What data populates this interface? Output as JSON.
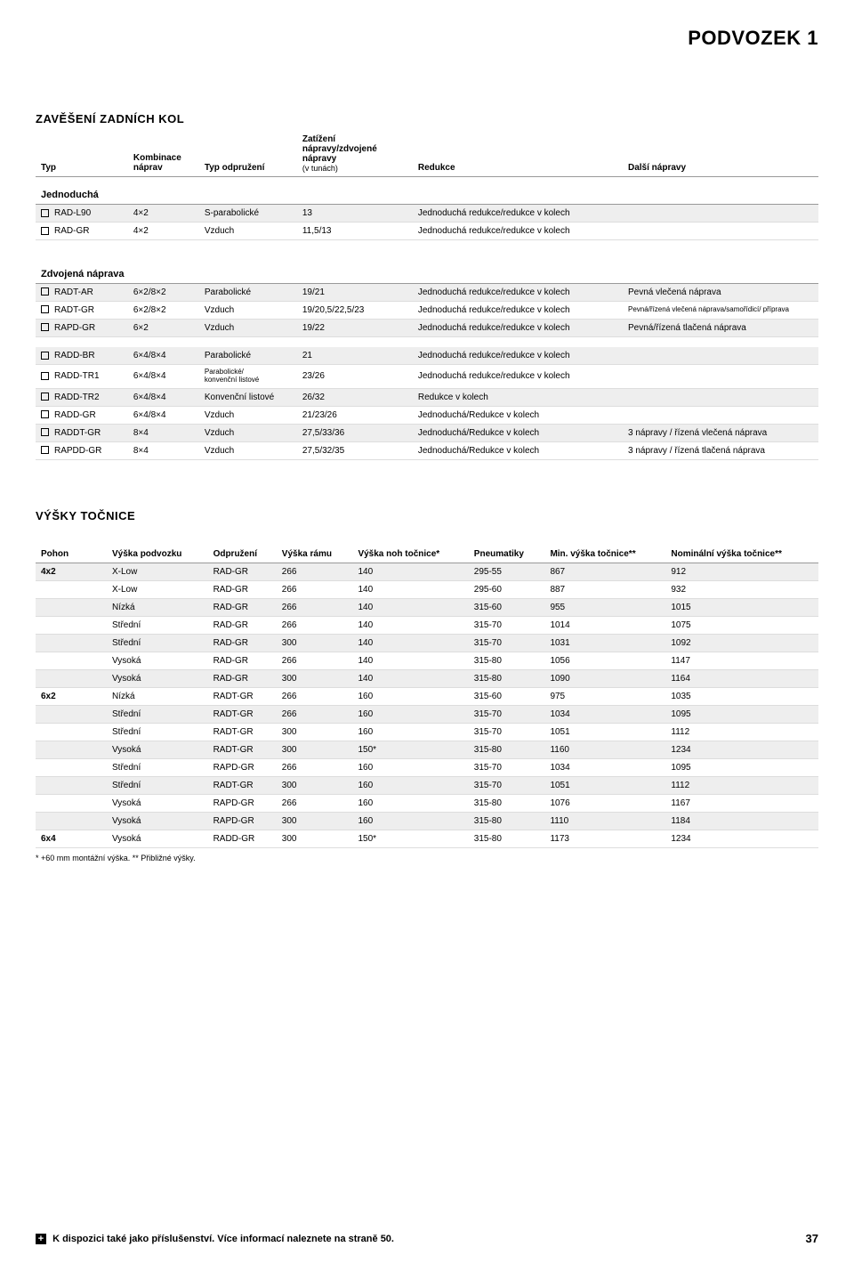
{
  "page_title": "PODVOZEK 1",
  "page_number": "37",
  "footer_text": "K dispozici také jako příslušenství. Více informací naleznete na straně 50.",
  "t1": {
    "title": "ZAVĚŠENÍ ZADNÍCH KOL",
    "headers": [
      "Typ",
      "Kombinace náprav",
      "Typ odpružení",
      "Zatížení nápravy/zdvojené nápravy",
      "Redukce",
      "Další nápravy"
    ],
    "sub_header_small": "(v tunách)",
    "sections": [
      {
        "name": "Jednoduchá",
        "rows": [
          {
            "shaded": true,
            "cells": [
              "RAD-L90",
              "4×2",
              "S-parabolické",
              "13",
              "Jednoduchá redukce/redukce v kolech",
              ""
            ]
          },
          {
            "shaded": false,
            "cells": [
              "RAD-GR",
              "4×2",
              "Vzduch",
              "11,5/13",
              "Jednoduchá redukce/redukce v kolech",
              ""
            ]
          }
        ]
      },
      {
        "name": "Zdvojená náprava",
        "rows": [
          {
            "shaded": true,
            "cells": [
              "RADT-AR",
              "6×2/8×2",
              "Parabolické",
              "19/21",
              "Jednoduchá redukce/redukce v kolech",
              "Pevná vlečená náprava"
            ]
          },
          {
            "shaded": false,
            "cells": [
              "RADT-GR",
              "6×2/8×2",
              "Vzduch",
              "19/20,5/22,5/23",
              "Jednoduchá redukce/redukce v kolech",
              "Pevná/řízená vlečená náprava/samořídicí/ příprava"
            ]
          },
          {
            "shaded": true,
            "cells": [
              "RAPD-GR",
              "6×2",
              "Vzduch",
              "19/22",
              "Jednoduchá redukce/redukce v kolech",
              "Pevná/řízená tlačená náprava"
            ]
          }
        ]
      },
      {
        "name": "",
        "rows": [
          {
            "shaded": true,
            "cells": [
              "RADD-BR",
              "6×4/8×4",
              "Parabolické",
              "21",
              "Jednoduchá redukce/redukce v kolech",
              ""
            ]
          },
          {
            "shaded": false,
            "cells": [
              "RADD-TR1",
              "6×4/8×4",
              "Parabolické/ konvenční listové",
              "23/26",
              "Jednoduchá redukce/redukce v kolech",
              ""
            ]
          },
          {
            "shaded": true,
            "cells": [
              "RADD-TR2",
              "6×4/8×4",
              "Konvenční listové",
              "26/32",
              "Redukce v kolech",
              ""
            ]
          },
          {
            "shaded": false,
            "cells": [
              "RADD-GR",
              "6×4/8×4",
              "Vzduch",
              "21/23/26",
              "Jednoduchá/Redukce v kolech",
              ""
            ]
          },
          {
            "shaded": true,
            "cells": [
              "RADDT-GR",
              "8×4",
              "Vzduch",
              "27,5/33/36",
              "Jednoduchá/Redukce v kolech",
              "3 nápravy / řízená vlečená náprava"
            ]
          },
          {
            "shaded": false,
            "cells": [
              "RAPDD-GR",
              "8×4",
              "Vzduch",
              "27,5/32/35",
              "Jednoduchá/Redukce v kolech",
              "3 nápravy / řízená tlačená náprava"
            ]
          }
        ]
      }
    ]
  },
  "t2": {
    "title": "VÝŠKY TOČNICE",
    "headers": [
      "Pohon",
      "Výška podvozku",
      "Odpružení",
      "Výška rámu",
      "Výška noh točnice*",
      "Pneumatiky",
      "Min. výška točnice**",
      "Nominální výška točnice**"
    ],
    "rows": [
      {
        "shaded": true,
        "cells": [
          "4x2",
          "X-Low",
          "RAD-GR",
          "266",
          "140",
          "295-55",
          "867",
          "912"
        ]
      },
      {
        "shaded": false,
        "cells": [
          "",
          "X-Low",
          "RAD-GR",
          "266",
          "140",
          "295-60",
          "887",
          "932"
        ]
      },
      {
        "shaded": true,
        "cells": [
          "",
          "Nízká",
          "RAD-GR",
          "266",
          "140",
          "315-60",
          "955",
          "1015"
        ]
      },
      {
        "shaded": false,
        "cells": [
          "",
          "Střední",
          "RAD-GR",
          "266",
          "140",
          "315-70",
          "1014",
          "1075"
        ]
      },
      {
        "shaded": true,
        "cells": [
          "",
          "Střední",
          "RAD-GR",
          "300",
          "140",
          "315-70",
          "1031",
          "1092"
        ]
      },
      {
        "shaded": false,
        "cells": [
          "",
          "Vysoká",
          "RAD-GR",
          "266",
          "140",
          "315-80",
          "1056",
          "1147"
        ]
      },
      {
        "shaded": true,
        "cells": [
          "",
          "Vysoká",
          "RAD-GR",
          "300",
          "140",
          "315-80",
          "1090",
          "1164"
        ]
      },
      {
        "shaded": false,
        "cells": [
          "6x2",
          "Nízká",
          "RADT-GR",
          "266",
          "160",
          "315-60",
          "975",
          "1035"
        ]
      },
      {
        "shaded": true,
        "cells": [
          "",
          "Střední",
          "RADT-GR",
          "266",
          "160",
          "315-70",
          "1034",
          "1095"
        ]
      },
      {
        "shaded": false,
        "cells": [
          "",
          "Střední",
          "RADT-GR",
          "300",
          "160",
          "315-70",
          "1051",
          "1112"
        ]
      },
      {
        "shaded": true,
        "cells": [
          "",
          "Vysoká",
          "RADT-GR",
          "300",
          "150*",
          "315-80",
          "1160",
          "1234"
        ]
      },
      {
        "shaded": false,
        "cells": [
          "",
          "Střední",
          "RAPD-GR",
          "266",
          "160",
          "315-70",
          "1034",
          "1095"
        ]
      },
      {
        "shaded": true,
        "cells": [
          "",
          "Střední",
          "RADT-GR",
          "300",
          "160",
          "315-70",
          "1051",
          "1112"
        ]
      },
      {
        "shaded": false,
        "cells": [
          "",
          "Vysoká",
          "RAPD-GR",
          "266",
          "160",
          "315-80",
          "1076",
          "1167"
        ]
      },
      {
        "shaded": true,
        "cells": [
          "",
          "Vysoká",
          "RAPD-GR",
          "300",
          "160",
          "315-80",
          "1110",
          "1184"
        ]
      },
      {
        "shaded": false,
        "cells": [
          "6x4",
          "Vysoká",
          "RADD-GR",
          "300",
          "150*",
          "315-80",
          "1173",
          "1234"
        ]
      }
    ],
    "footnote": "* +60 mm montážní výška. ** Přibližné výšky."
  },
  "colors": {
    "shaded_bg": "#eeeeee",
    "border": "#dddddd",
    "header_border": "#999999",
    "text": "#000000"
  }
}
